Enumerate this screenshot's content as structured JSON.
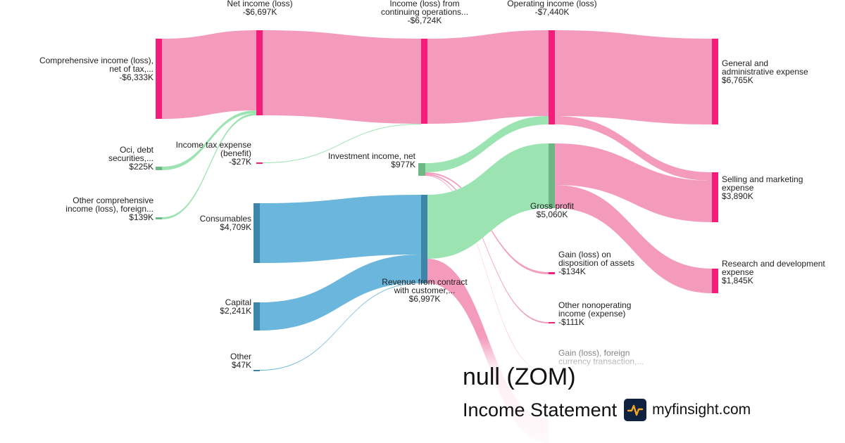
{
  "brand": {
    "company_title": "null (ZOM)",
    "statement_subtitle": "Income Statement",
    "site_name": "myfinsight.com",
    "logo_icon": "pulse-icon"
  },
  "colors": {
    "expense": "#f49bbd",
    "expense_node": "#f51d7a",
    "profit": "#9be4b1",
    "profit_node": "#6db787",
    "revenue": "#6bb6dc",
    "revenue_node": "#3d85a9"
  },
  "chart_data": {
    "type": "sankey",
    "units": "USD thousands",
    "nodes": [
      {
        "id": "oci_debt",
        "label": [
          "Oci, debt",
          "securities,..."
        ],
        "value_label": "$225K",
        "value": 225
      },
      {
        "id": "oci_other",
        "label": [
          "Other comprehensive",
          "income (loss), foreign..."
        ],
        "value_label": "$139K",
        "value": 139
      },
      {
        "id": "comprehensive",
        "label": [
          "Comprehensive income (loss),",
          "net of tax,..."
        ],
        "value_label": "-$6,333K",
        "value": -6333
      },
      {
        "id": "net_income",
        "label": [
          "Net income (loss)"
        ],
        "value_label": "-$6,697K",
        "value": -6697
      },
      {
        "id": "tax",
        "label": [
          "Income tax expense",
          "(benefit)"
        ],
        "value_label": "-$27K",
        "value": -27
      },
      {
        "id": "consumables",
        "label": [
          "Consumables"
        ],
        "value_label": "$4,709K",
        "value": 4709
      },
      {
        "id": "capital",
        "label": [
          "Capital"
        ],
        "value_label": "$2,241K",
        "value": 2241
      },
      {
        "id": "other",
        "label": [
          "Other"
        ],
        "value_label": "$47K",
        "value": 47
      },
      {
        "id": "cont_ops",
        "label": [
          "Income (loss) from",
          "continuing operations..."
        ],
        "value_label": "-$6,724K",
        "value": -6724
      },
      {
        "id": "investment",
        "label": [
          "Investment income, net"
        ],
        "value_label": "$977K",
        "value": 977
      },
      {
        "id": "revenue",
        "label": [
          "Revenue from contract",
          "with customer,..."
        ],
        "value_label": "$6,997K",
        "value": 6997
      },
      {
        "id": "operating",
        "label": [
          "Operating income (loss)"
        ],
        "value_label": "-$7,440K",
        "value": -7440
      },
      {
        "id": "gross_profit",
        "label": [
          "Gross profit"
        ],
        "value_label": "$5,060K",
        "value": 5060
      },
      {
        "id": "gain_assets",
        "label": [
          "Gain (loss) on",
          "disposition of assets"
        ],
        "value_label": "-$134K",
        "value": -134
      },
      {
        "id": "other_nonop",
        "label": [
          "Other nonoperating",
          "income (expense)"
        ],
        "value_label": "-$111K",
        "value": -111
      },
      {
        "id": "fx_gain",
        "label": [
          "Gain (loss), foreign",
          "currency transaction,..."
        ],
        "value_label": "",
        "value": null
      },
      {
        "id": "ga",
        "label": [
          "General and",
          "administrative expense"
        ],
        "value_label": "$6,765K",
        "value": 6765
      },
      {
        "id": "sm",
        "label": [
          "Selling and marketing",
          "expense"
        ],
        "value_label": "$3,890K",
        "value": 3890
      },
      {
        "id": "rd",
        "label": [
          "Research and development",
          "expense"
        ],
        "value_label": "$1,845K",
        "value": 1845
      }
    ],
    "links": [
      {
        "source": "comprehensive",
        "target": "net_income",
        "value": 6333,
        "kind": "expense"
      },
      {
        "source": "oci_debt",
        "target": "net_income",
        "value": 225,
        "kind": "profit"
      },
      {
        "source": "oci_other",
        "target": "net_income",
        "value": 139,
        "kind": "profit"
      },
      {
        "source": "net_income",
        "target": "cont_ops",
        "value": 6697,
        "kind": "expense"
      },
      {
        "source": "tax",
        "target": "cont_ops",
        "value": 27,
        "kind": "profit"
      },
      {
        "source": "cont_ops",
        "target": "operating",
        "value": 6724,
        "kind": "expense"
      },
      {
        "source": "investment",
        "target": "operating",
        "value": 716,
        "kind": "profit"
      },
      {
        "source": "investment",
        "target": "gain_assets",
        "value": 134,
        "kind": "expense"
      },
      {
        "source": "investment",
        "target": "other_nonop",
        "value": 111,
        "kind": "expense"
      },
      {
        "source": "investment",
        "target": "fx_gain",
        "value": 16,
        "kind": "expense"
      },
      {
        "source": "consumables",
        "target": "revenue",
        "value": 4709,
        "kind": "revenue"
      },
      {
        "source": "capital",
        "target": "revenue",
        "value": 2241,
        "kind": "revenue"
      },
      {
        "source": "other",
        "target": "revenue",
        "value": 47,
        "kind": "revenue"
      },
      {
        "source": "revenue",
        "target": "gross_profit",
        "value": 5060,
        "kind": "profit"
      },
      {
        "source": "revenue",
        "target": "cost_of_revenue",
        "value": 1937,
        "kind": "expense"
      },
      {
        "source": "operating",
        "target": "ga",
        "value": 6765,
        "kind": "expense"
      },
      {
        "source": "operating",
        "target": "sm",
        "value": 675,
        "kind": "expense"
      },
      {
        "source": "gross_profit",
        "target": "sm",
        "value": 3215,
        "kind": "expense"
      },
      {
        "source": "gross_profit",
        "target": "rd",
        "value": 1845,
        "kind": "expense"
      }
    ]
  }
}
